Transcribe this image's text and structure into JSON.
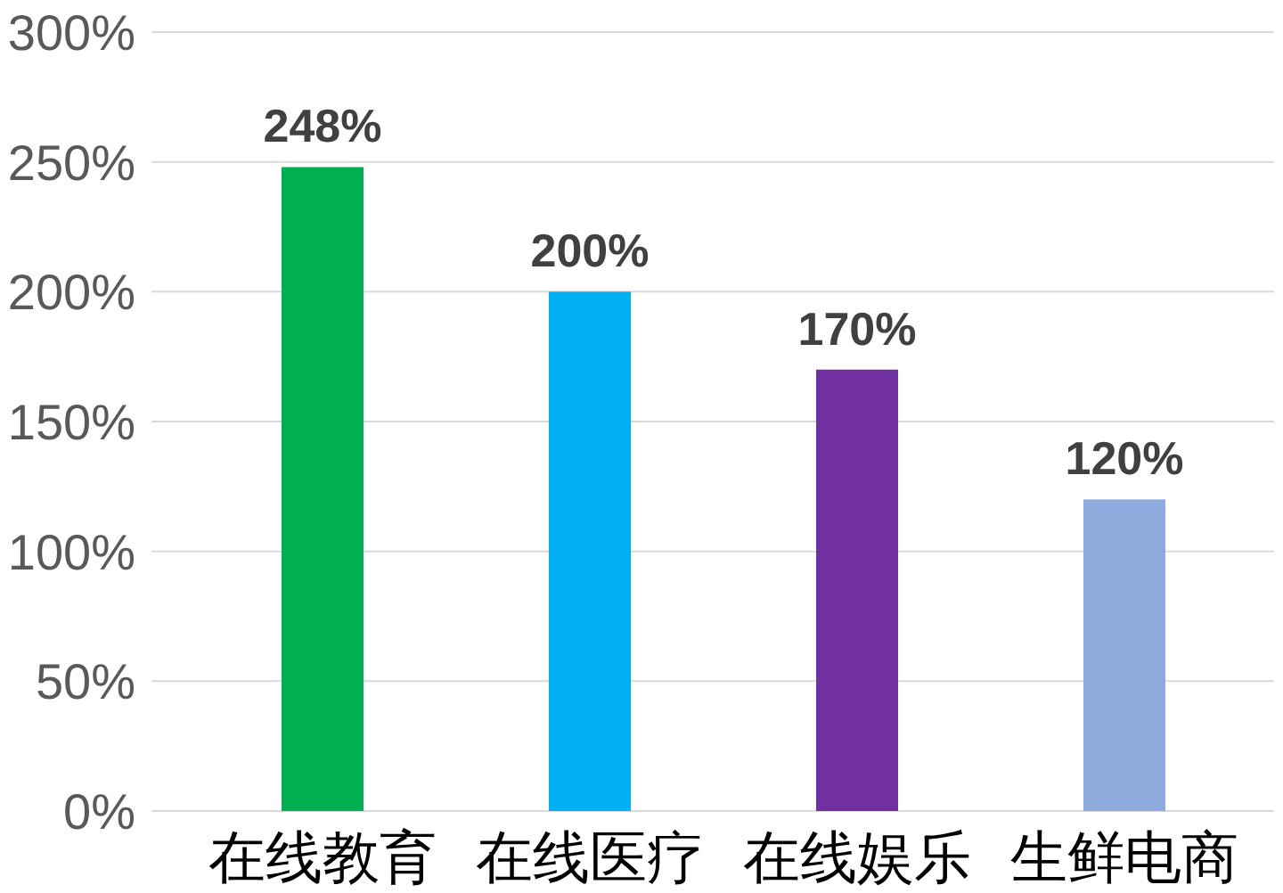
{
  "chart_data": {
    "type": "bar",
    "categories": [
      "在线教育",
      "在线医疗",
      "在线娱乐",
      "生鲜电商"
    ],
    "values": [
      248,
      200,
      170,
      120
    ],
    "colors": [
      "#00b050",
      "#00b0f0",
      "#7030a0",
      "#8faadc"
    ],
    "value_labels": [
      "248%",
      "200%",
      "170%",
      "120%"
    ],
    "ylim": [
      0,
      300
    ],
    "yticks": [
      {
        "value": 0,
        "label": "0%"
      },
      {
        "value": 50,
        "label": "50%"
      },
      {
        "value": 100,
        "label": "100%"
      },
      {
        "value": 150,
        "label": "150%"
      },
      {
        "value": 200,
        "label": "200%"
      },
      {
        "value": 250,
        "label": "250%"
      },
      {
        "value": 300,
        "label": "300%"
      }
    ],
    "grid": "y"
  }
}
